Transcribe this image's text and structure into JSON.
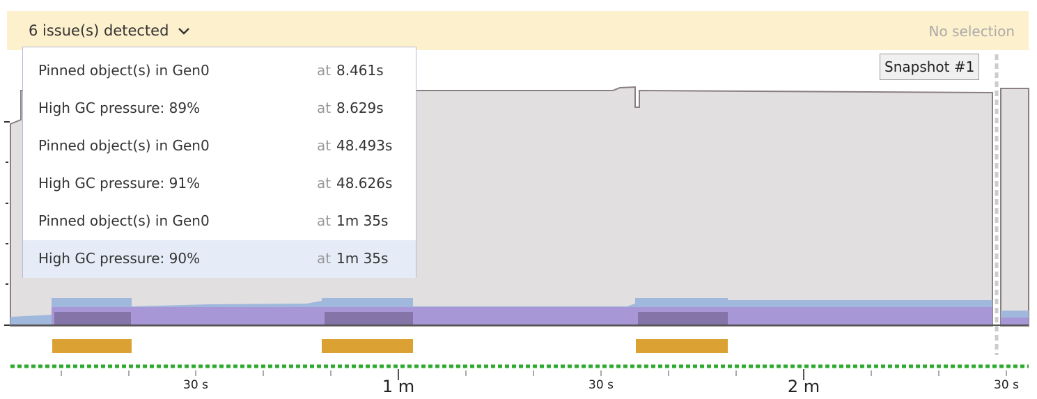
{
  "header": {
    "issues_toggle": "6 issue(s) detected",
    "selection_status": "No selection"
  },
  "snapshot_label": "Snapshot #1",
  "at_label": "at",
  "issues": [
    {
      "name": "Pinned object(s) in Gen0",
      "time": "8.461s"
    },
    {
      "name": "High GC pressure: 89%",
      "time": "8.629s"
    },
    {
      "name": "Pinned object(s) in Gen0",
      "time": "48.493s"
    },
    {
      "name": "High GC pressure: 91%",
      "time": "48.626s"
    },
    {
      "name": "Pinned object(s) in Gen0",
      "time": "1m 35s"
    },
    {
      "name": "High GC pressure: 90%",
      "time": "1m 35s"
    }
  ],
  "timeline": {
    "labels": [
      "30 s",
      "1 m",
      "30 s",
      "2 m",
      "30 s"
    ]
  }
}
